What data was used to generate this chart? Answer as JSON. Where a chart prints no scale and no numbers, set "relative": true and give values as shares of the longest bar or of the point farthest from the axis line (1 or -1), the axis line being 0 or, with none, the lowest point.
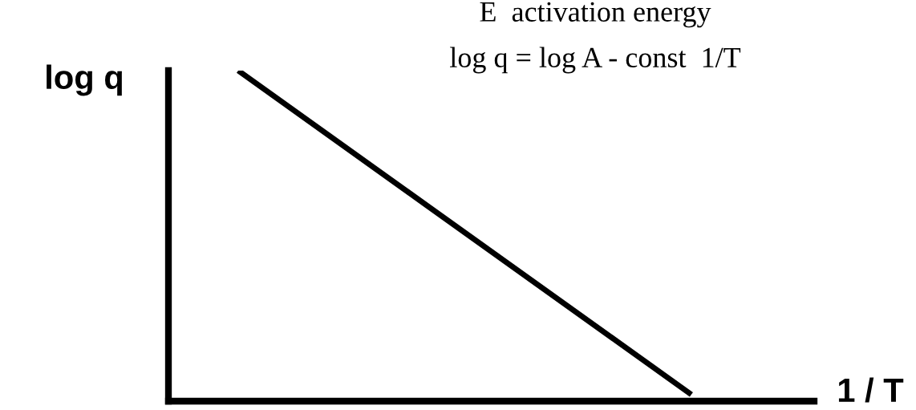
{
  "chart_data": {
    "type": "line",
    "relative": true,
    "xlabel": "1 / T",
    "ylabel": "log q",
    "categories": [
      null,
      null
    ],
    "series": [
      {
        "color": "#000000",
        "values": [
          1,
          0.02
        ]
      }
    ],
    "annotations": [
      "E  activation energy",
      "log q = log A - const  1/T"
    ],
    "grid": false,
    "legend": false,
    "marker": "none",
    "line_style": "solid"
  }
}
